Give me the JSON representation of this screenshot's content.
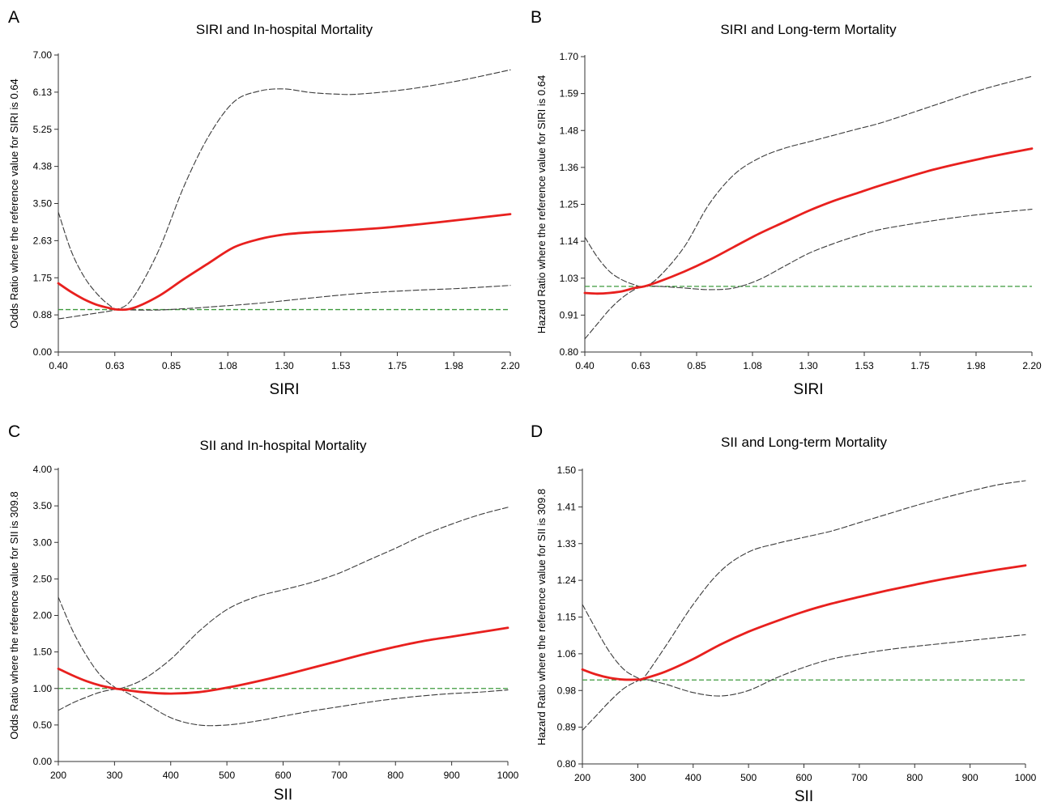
{
  "colors": {
    "estimate": "#e8201e",
    "ci": "#3a3a3a",
    "reference": "#3c9a3c",
    "axis": "#333333"
  },
  "chart_data": [
    {
      "panel": "A",
      "type": "line",
      "title": "SIRI and In-hospital Mortality",
      "xlabel": "SIRI",
      "ylabel": "Odds Ratio where the reference value for SIRI is 0.64",
      "xlim": [
        0.4,
        2.2
      ],
      "ylim": [
        0.0,
        7.0
      ],
      "xticks": [
        "0.40",
        "0.63",
        "0.85",
        "1.08",
        "1.30",
        "1.53",
        "1.75",
        "1.98",
        "2.20"
      ],
      "yticks": [
        "0.00",
        "0.88",
        "1.75",
        "2.63",
        "3.50",
        "4.38",
        "5.25",
        "6.13",
        "7.00"
      ],
      "reference_line": 1.0,
      "grid": false,
      "series": [
        {
          "role": "estimate",
          "x": [
            0.4,
            0.45,
            0.5,
            0.55,
            0.6,
            0.64,
            0.7,
            0.8,
            0.9,
            1.0,
            1.1,
            1.2,
            1.3,
            1.4,
            1.5,
            1.7,
            1.9,
            2.2
          ],
          "y": [
            1.62,
            1.42,
            1.25,
            1.12,
            1.04,
            1.0,
            1.04,
            1.32,
            1.72,
            2.1,
            2.47,
            2.66,
            2.77,
            2.82,
            2.85,
            2.93,
            3.05,
            3.25
          ]
        },
        {
          "role": "upper",
          "x": [
            0.4,
            0.45,
            0.5,
            0.55,
            0.6,
            0.64,
            0.7,
            0.8,
            0.9,
            1.0,
            1.1,
            1.2,
            1.3,
            1.4,
            1.5,
            1.6,
            1.8,
            2.0,
            2.2
          ],
          "y": [
            3.3,
            2.4,
            1.8,
            1.4,
            1.12,
            1.02,
            1.3,
            2.4,
            3.9,
            5.1,
            5.9,
            6.15,
            6.2,
            6.12,
            6.08,
            6.08,
            6.2,
            6.4,
            6.65
          ]
        },
        {
          "role": "lower",
          "x": [
            0.4,
            0.5,
            0.6,
            0.64,
            0.7,
            0.8,
            0.9,
            1.0,
            1.2,
            1.4,
            1.6,
            1.8,
            2.0,
            2.2
          ],
          "y": [
            0.78,
            0.87,
            0.96,
            1.0,
            0.99,
            0.99,
            1.02,
            1.06,
            1.15,
            1.27,
            1.38,
            1.45,
            1.5,
            1.57
          ]
        }
      ]
    },
    {
      "panel": "B",
      "type": "line",
      "title": "SIRI and Long-term Mortality",
      "xlabel": "SIRI",
      "ylabel": "Hazard Ratio where the reference value for SIRI is 0.64",
      "xlim": [
        0.4,
        2.2
      ],
      "ylim": [
        0.8,
        1.7
      ],
      "xticks": [
        "0.40",
        "0.63",
        "0.85",
        "1.08",
        "1.30",
        "1.53",
        "1.75",
        "1.98",
        "2.20"
      ],
      "yticks": [
        "0.80",
        "0.91",
        "1.03",
        "1.14",
        "1.25",
        "1.36",
        "1.48",
        "1.59",
        "1.70"
      ],
      "reference_line": 1.0,
      "grid": false,
      "series": [
        {
          "role": "estimate",
          "x": [
            0.4,
            0.45,
            0.5,
            0.55,
            0.6,
            0.64,
            0.7,
            0.8,
            0.9,
            1.0,
            1.1,
            1.2,
            1.3,
            1.4,
            1.5,
            1.6,
            1.8,
            2.0,
            2.2
          ],
          "y": [
            0.98,
            0.978,
            0.98,
            0.985,
            0.995,
            1.0,
            1.015,
            1.045,
            1.08,
            1.12,
            1.16,
            1.195,
            1.23,
            1.26,
            1.285,
            1.31,
            1.355,
            1.39,
            1.42
          ]
        },
        {
          "role": "upper",
          "x": [
            0.4,
            0.45,
            0.5,
            0.55,
            0.6,
            0.64,
            0.7,
            0.8,
            0.9,
            1.0,
            1.1,
            1.2,
            1.3,
            1.4,
            1.5,
            1.6,
            1.8,
            2.0,
            2.2
          ],
          "y": [
            1.15,
            1.09,
            1.045,
            1.02,
            1.005,
            1.0,
            1.03,
            1.12,
            1.25,
            1.34,
            1.39,
            1.42,
            1.44,
            1.46,
            1.48,
            1.5,
            1.55,
            1.6,
            1.64
          ]
        },
        {
          "role": "lower",
          "x": [
            0.4,
            0.45,
            0.5,
            0.55,
            0.6,
            0.64,
            0.7,
            0.8,
            0.9,
            1.0,
            1.1,
            1.2,
            1.3,
            1.4,
            1.5,
            1.6,
            1.8,
            2.0,
            2.2
          ],
          "y": [
            0.84,
            0.885,
            0.93,
            0.965,
            0.99,
            1.0,
            1.0,
            0.995,
            0.99,
            0.995,
            1.02,
            1.06,
            1.1,
            1.13,
            1.155,
            1.175,
            1.2,
            1.22,
            1.235
          ]
        }
      ]
    },
    {
      "panel": "C",
      "type": "line",
      "title": "SII and In-hospital Mortality",
      "xlabel": "SII",
      "ylabel": "Odds Ratio where the reference value for SII is 309.8",
      "xlim": [
        200,
        1000
      ],
      "ylim": [
        0.0,
        4.0
      ],
      "xticks": [
        "200",
        "300",
        "400",
        "500",
        "600",
        "700",
        "800",
        "900",
        "1000"
      ],
      "yticks": [
        "0.00",
        "0.50",
        "1.00",
        "1.50",
        "2.00",
        "2.50",
        "3.00",
        "3.50",
        "4.00"
      ],
      "reference_line": 1.0,
      "grid": false,
      "series": [
        {
          "role": "estimate",
          "x": [
            200,
            225,
            250,
            275,
            300,
            310,
            350,
            400,
            450,
            500,
            550,
            600,
            650,
            700,
            750,
            800,
            850,
            900,
            950,
            1000
          ],
          "y": [
            1.27,
            1.18,
            1.1,
            1.04,
            1.0,
            0.99,
            0.95,
            0.93,
            0.95,
            1.01,
            1.09,
            1.18,
            1.28,
            1.38,
            1.48,
            1.57,
            1.65,
            1.71,
            1.77,
            1.83
          ]
        },
        {
          "role": "upper",
          "x": [
            200,
            225,
            250,
            275,
            300,
            310,
            350,
            400,
            450,
            500,
            550,
            600,
            650,
            700,
            750,
            800,
            850,
            900,
            950,
            1000
          ],
          "y": [
            2.25,
            1.8,
            1.45,
            1.18,
            1.02,
            1.0,
            1.12,
            1.4,
            1.78,
            2.08,
            2.25,
            2.35,
            2.45,
            2.58,
            2.75,
            2.92,
            3.1,
            3.25,
            3.38,
            3.48
          ]
        },
        {
          "role": "lower",
          "x": [
            200,
            225,
            250,
            275,
            300,
            310,
            350,
            400,
            450,
            500,
            550,
            600,
            650,
            700,
            750,
            800,
            850,
            900,
            950,
            1000
          ],
          "y": [
            0.7,
            0.8,
            0.88,
            0.95,
            0.99,
            0.99,
            0.82,
            0.6,
            0.5,
            0.5,
            0.55,
            0.62,
            0.69,
            0.75,
            0.81,
            0.86,
            0.9,
            0.93,
            0.95,
            0.98
          ]
        }
      ]
    },
    {
      "panel": "D",
      "type": "line",
      "title": "SII and Long-term Mortality",
      "xlabel": "SII",
      "ylabel": "Hazard Ratio where the reference value for SII is 309.8",
      "xlim": [
        200,
        1000
      ],
      "ylim": [
        0.8,
        1.5
      ],
      "xticks": [
        "200",
        "300",
        "400",
        "500",
        "600",
        "700",
        "800",
        "900",
        "1000"
      ],
      "yticks": [
        "0.80",
        "0.89",
        "0.98",
        "1.06",
        "1.15",
        "1.24",
        "1.33",
        "1.41",
        "1.50"
      ],
      "reference_line": 1.0,
      "grid": false,
      "series": [
        {
          "role": "estimate",
          "x": [
            200,
            225,
            250,
            275,
            300,
            310,
            350,
            400,
            450,
            500,
            550,
            600,
            650,
            700,
            750,
            800,
            850,
            900,
            950,
            1000
          ],
          "y": [
            1.025,
            1.013,
            1.005,
            1.001,
            1.001,
            1.003,
            1.02,
            1.05,
            1.085,
            1.115,
            1.14,
            1.163,
            1.182,
            1.198,
            1.213,
            1.227,
            1.24,
            1.252,
            1.263,
            1.273
          ]
        },
        {
          "role": "upper",
          "x": [
            200,
            225,
            250,
            275,
            300,
            310,
            350,
            400,
            450,
            500,
            550,
            600,
            650,
            700,
            750,
            800,
            850,
            900,
            950,
            1000
          ],
          "y": [
            1.18,
            1.12,
            1.065,
            1.025,
            1.005,
            1.004,
            1.08,
            1.18,
            1.26,
            1.305,
            1.325,
            1.34,
            1.355,
            1.375,
            1.395,
            1.415,
            1.433,
            1.45,
            1.465,
            1.475
          ]
        },
        {
          "role": "lower",
          "x": [
            200,
            225,
            250,
            275,
            300,
            310,
            350,
            400,
            450,
            500,
            550,
            600,
            650,
            700,
            750,
            800,
            850,
            900,
            950,
            1000
          ],
          "y": [
            0.88,
            0.915,
            0.95,
            0.98,
            0.998,
            1.002,
            0.99,
            0.97,
            0.962,
            0.975,
            1.005,
            1.03,
            1.05,
            1.062,
            1.072,
            1.08,
            1.087,
            1.094,
            1.101,
            1.108
          ]
        }
      ]
    }
  ]
}
